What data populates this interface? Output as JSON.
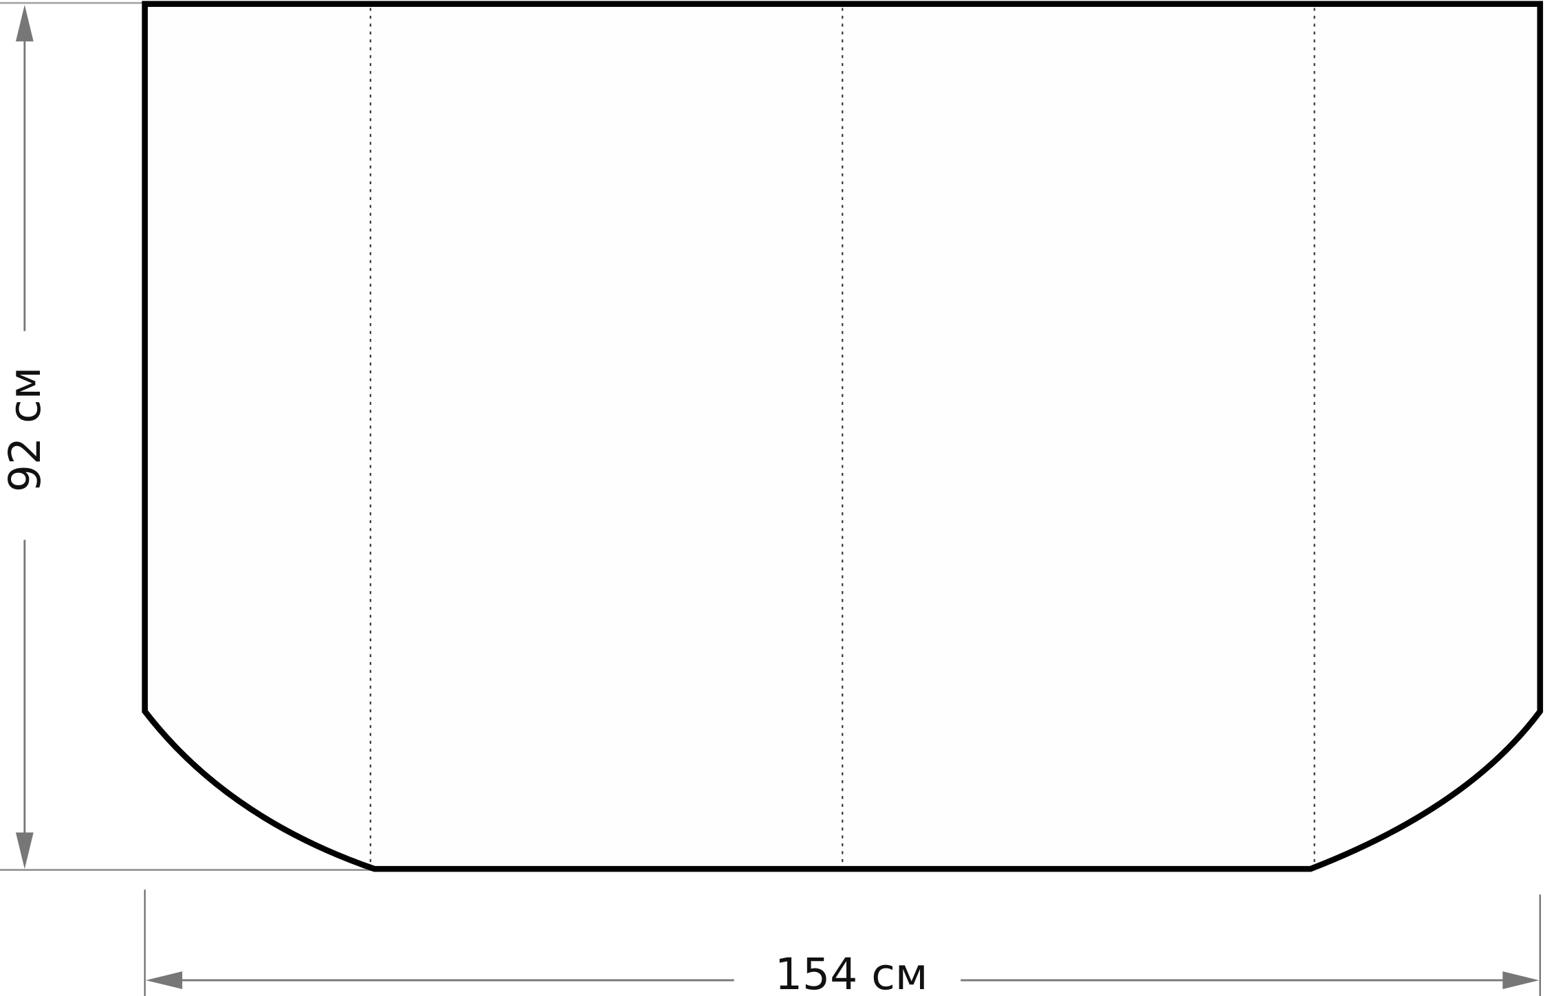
{
  "dimensions": {
    "height_label": "92 см",
    "width_label": "154 см"
  },
  "colors": {
    "outline": "#000000",
    "dimension_lines": "#777777",
    "fold_lines": "#333333",
    "background": "#ffffff"
  }
}
